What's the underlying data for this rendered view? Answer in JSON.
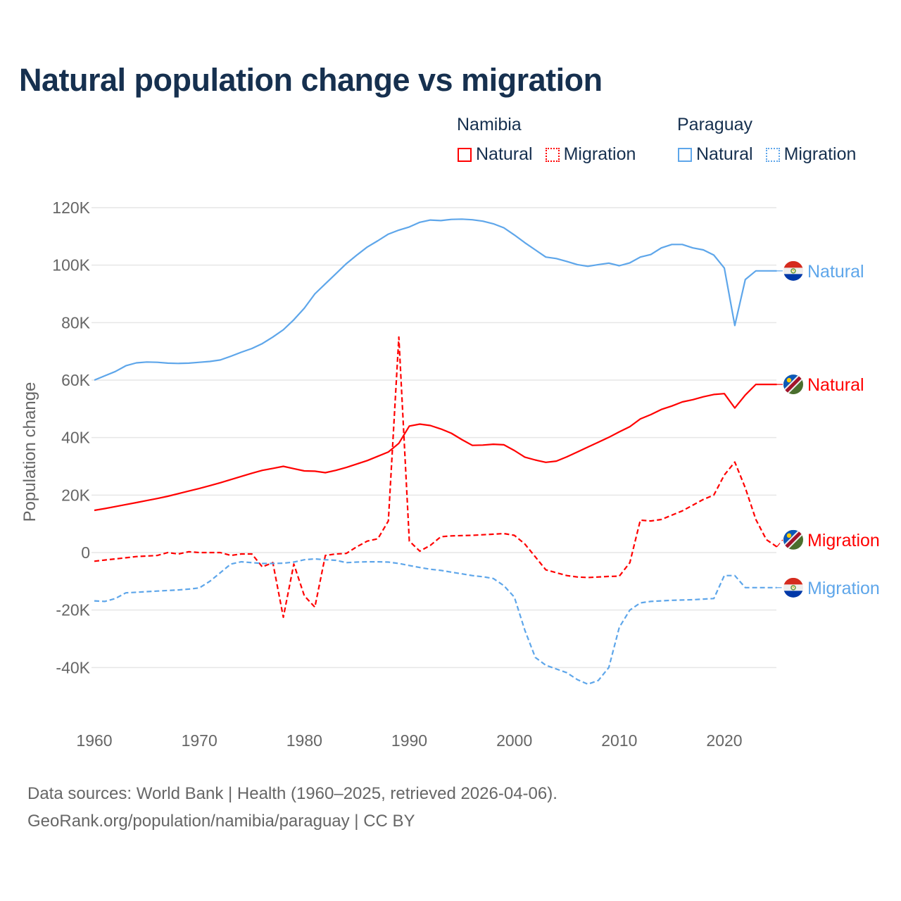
{
  "title": "Natural population change vs migration",
  "legend": {
    "groups": [
      {
        "country": "Namibia",
        "items": [
          "Natural",
          "Migration"
        ],
        "color": "#ff0000"
      },
      {
        "country": "Paraguay",
        "items": [
          "Natural",
          "Migration"
        ],
        "color": "#5ea6ea"
      }
    ]
  },
  "footer": {
    "line1": "Data sources: World Bank | Health (1960–2025, retrieved 2026-04-06).",
    "line2": "GeoRank.org/population/namibia/paraguay | CC BY"
  },
  "chart_data": {
    "type": "line",
    "title": "Natural population change vs migration",
    "xlabel": "",
    "ylabel": "Population change",
    "xlim": [
      1960,
      2025
    ],
    "ylim": [
      -55000,
      125000
    ],
    "x_ticks": [
      1960,
      1970,
      1980,
      1990,
      2000,
      2010,
      2020
    ],
    "x_tick_labels": [
      "1960",
      "1970",
      "1980",
      "1990",
      "2000",
      "2010",
      "2020"
    ],
    "y_ticks": [
      -40000,
      -20000,
      0,
      20000,
      40000,
      60000,
      80000,
      100000,
      120000
    ],
    "y_tick_labels": [
      "-40K",
      "-20K",
      "0",
      "20K",
      "40K",
      "60K",
      "80K",
      "100K",
      "120K"
    ],
    "grid": true,
    "legend_position": "top-right",
    "x_start": 1960,
    "series": [
      {
        "name": "Paraguay Natural",
        "country": "Paraguay",
        "label": "Natural",
        "color": "#5ea6ea",
        "dash": "solid",
        "values_k": [
          60,
          61.5,
          63,
          65,
          66,
          66.3,
          66.2,
          65.9,
          65.8,
          65.9,
          66.2,
          66.5,
          67,
          68.3,
          69.7,
          71,
          72.7,
          75,
          77.5,
          81,
          85,
          90,
          93.5,
          97,
          100.5,
          103.5,
          106.3,
          108.5,
          110.8,
          112.2,
          113.3,
          114.9,
          115.7,
          115.5,
          115.9,
          116,
          115.8,
          115.3,
          114.4,
          113,
          110.5,
          107.8,
          105.3,
          102.8,
          102.3,
          101.3,
          100.2,
          99.6,
          100.2,
          100.7,
          99.8,
          100.8,
          102.8,
          103.7,
          106,
          107.2,
          107.2,
          106,
          105.3,
          103.5,
          99,
          79,
          95,
          98,
          98,
          98
        ]
      },
      {
        "name": "Namibia Natural",
        "country": "Namibia",
        "label": "Natural",
        "color": "#ff0000",
        "dash": "solid",
        "values_k": [
          14.7,
          15.3,
          16,
          16.7,
          17.4,
          18.1,
          18.8,
          19.6,
          20.5,
          21.4,
          22.3,
          23.3,
          24.3,
          25.4,
          26.5,
          27.6,
          28.6,
          29.3,
          30,
          29.2,
          28.4,
          28.3,
          27.8,
          28.6,
          29.6,
          30.8,
          32,
          33.5,
          35,
          38,
          44,
          44.7,
          44.2,
          43,
          41.5,
          39.3,
          37.3,
          37.4,
          37.7,
          37.5,
          35.5,
          33.2,
          32.2,
          31.4,
          31.8,
          33.3,
          35,
          36.7,
          38.4,
          40.1,
          42,
          43.8,
          46.5,
          48,
          49.8,
          51,
          52.4,
          53.2,
          54.2,
          55,
          55.3,
          50.3,
          54.8,
          58.5,
          58.5,
          58.5
        ]
      },
      {
        "name": "Namibia Migration",
        "country": "Namibia",
        "label": "Migration",
        "color": "#ff0000",
        "dash": "dashed",
        "values_k": [
          -3,
          -2.6,
          -2.2,
          -1.8,
          -1.4,
          -1.2,
          -1,
          0,
          -0.5,
          0.3,
          0,
          0,
          0,
          -1,
          -0.5,
          -0.5,
          -5,
          -3.5,
          -22.5,
          -4,
          -15,
          -19,
          -1,
          -0.5,
          -0.3,
          2,
          4,
          4.8,
          11,
          75,
          4,
          0.5,
          2.5,
          5.5,
          5.8,
          5.9,
          6,
          6.2,
          6.4,
          6.6,
          6,
          3,
          -1.5,
          -6,
          -7,
          -8,
          -8.5,
          -8.7,
          -8.5,
          -8.3,
          -8.2,
          -3.5,
          11.3,
          11,
          11.5,
          13,
          14.5,
          16.5,
          18.5,
          20,
          27,
          31.5,
          22.5,
          11.5,
          4.5,
          2
        ]
      },
      {
        "name": "Paraguay Migration",
        "country": "Paraguay",
        "label": "Migration",
        "color": "#5ea6ea",
        "dash": "dashed",
        "values_k": [
          -16.8,
          -17,
          -16,
          -14,
          -13.8,
          -13.6,
          -13.4,
          -13.2,
          -13,
          -12.7,
          -12.3,
          -10,
          -7,
          -4,
          -3.2,
          -3.5,
          -3.8,
          -3.8,
          -3.7,
          -3.3,
          -2.5,
          -2.2,
          -2.5,
          -2.7,
          -3.5,
          -3.3,
          -3.2,
          -3.2,
          -3.3,
          -3.8,
          -4.5,
          -5.2,
          -5.8,
          -6.2,
          -6.8,
          -7.4,
          -8,
          -8.4,
          -9,
          -11.5,
          -15.5,
          -27,
          -36.5,
          -39.2,
          -40.5,
          -41.8,
          -44.2,
          -45.8,
          -44.5,
          -40,
          -26,
          -20,
          -17.5,
          -17,
          -16.8,
          -16.6,
          -16.5,
          -16.4,
          -16.2,
          -16,
          -8,
          -8,
          -12.2,
          -12.2,
          -12.2,
          -12.2
        ]
      }
    ]
  }
}
